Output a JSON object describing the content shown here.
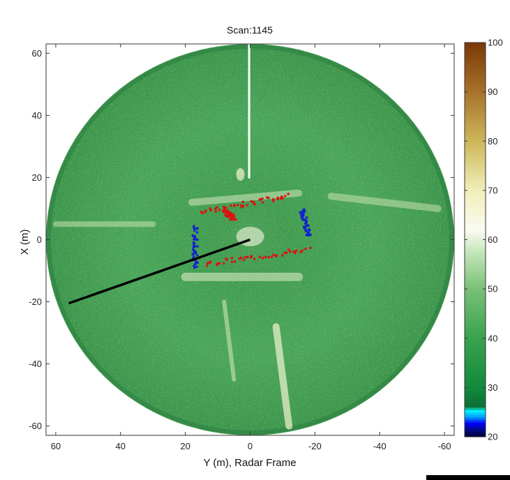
{
  "chart_data": {
    "type": "heatmap",
    "title": "Scan:1145",
    "xlabel": "Y (m), Radar Frame",
    "ylabel": "X (m)",
    "xlim": [
      63,
      -63
    ],
    "ylim": [
      -63,
      63
    ],
    "xticks": [
      60,
      40,
      20,
      0,
      -20,
      -40,
      -60
    ],
    "xtick_labels": [
      "60",
      "40",
      "20",
      "0",
      "-20",
      "-40",
      "-60"
    ],
    "yticks": [
      60,
      40,
      20,
      0,
      -20,
      -40,
      -60
    ],
    "ytick_labels": [
      "60",
      "40",
      "20",
      "0",
      "-20",
      "-40",
      "-60"
    ],
    "radar_max_range_m": 63,
    "colorbar": {
      "min": 20,
      "max": 100,
      "ticks": [
        20,
        30,
        40,
        50,
        60,
        70,
        80,
        90,
        100
      ],
      "tick_labels": [
        "20",
        "30",
        "40",
        "50",
        "60",
        "70",
        "80",
        "90",
        "100"
      ]
    },
    "annotations": {
      "heading_line": {
        "from": [
          0,
          0
        ],
        "to": [
          56,
          -20.5
        ],
        "color": "#000000"
      },
      "red_detections": {
        "color": "#dd1111",
        "segments": [
          [
            [
              15,
              9
            ],
            [
              -12,
              14
            ]
          ],
          [
            [
              14,
              -8
            ],
            [
              -18,
              -3
            ]
          ],
          [
            [
              8,
              9
            ],
            [
              5,
              7
            ]
          ]
        ]
      },
      "blue_detections": {
        "color": "#1122cc",
        "segments": [
          [
            [
              17,
              4
            ],
            [
              17,
              -9
            ]
          ],
          [
            [
              -16,
              10
            ],
            [
              -18,
              1
            ]
          ]
        ]
      }
    }
  }
}
